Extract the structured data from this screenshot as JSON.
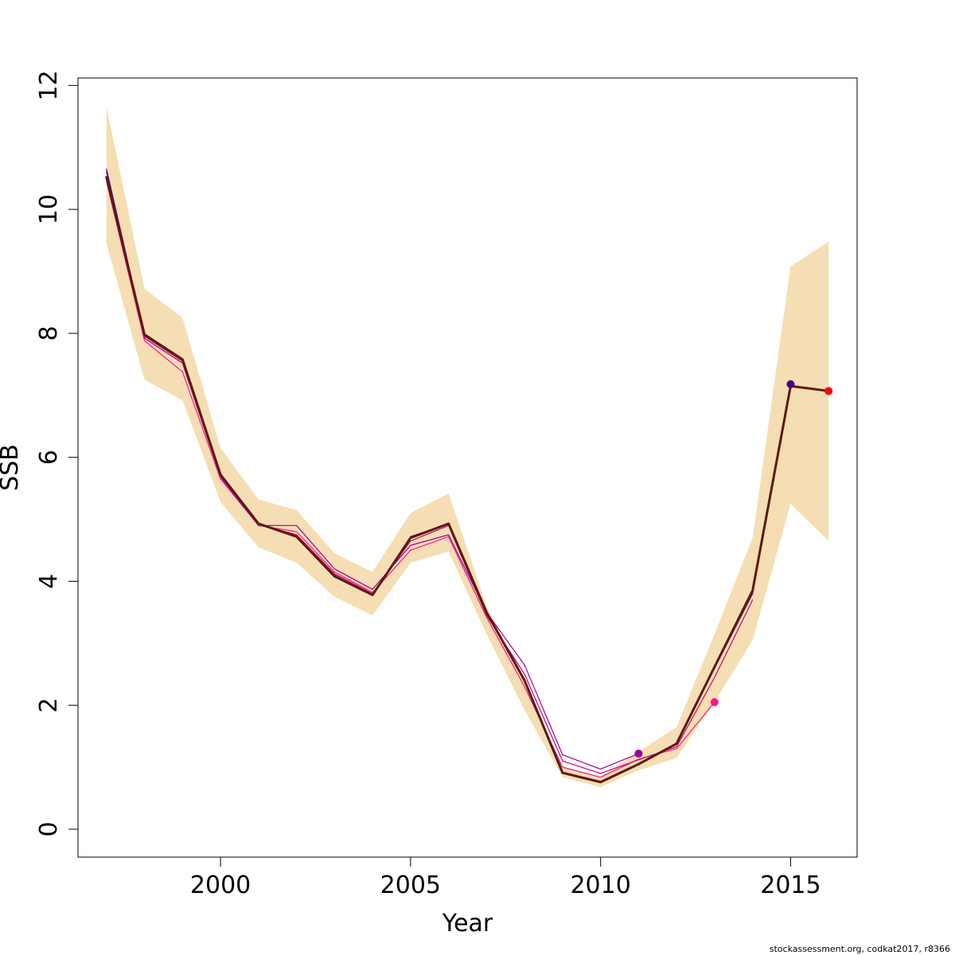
{
  "chart_data": {
    "type": "line",
    "xlabel": "Year",
    "ylabel": "SSB",
    "xlim": [
      1996.25,
      2016.75
    ],
    "ylim": [
      -0.45,
      12.12
    ],
    "x_ticks": [
      2000,
      2005,
      2010,
      2015
    ],
    "y_ticks": [
      0,
      2,
      4,
      6,
      8,
      10,
      12
    ],
    "grid": false,
    "legend": "none",
    "band": {
      "color": "#f5deb3",
      "x": [
        1997,
        1998,
        1999,
        2000,
        2001,
        2002,
        2003,
        2004,
        2005,
        2006,
        2007,
        2008,
        2009,
        2010,
        2011,
        2012,
        2013,
        2014,
        2015,
        2016
      ],
      "upper": [
        11.65,
        8.72,
        8.25,
        6.15,
        5.32,
        5.15,
        4.45,
        4.15,
        5.1,
        5.42,
        3.6,
        2.35,
        1.02,
        0.85,
        1.25,
        1.65,
        3.15,
        4.7,
        9.08,
        9.48
      ],
      "lower": [
        9.45,
        7.25,
        6.92,
        5.28,
        4.55,
        4.3,
        3.75,
        3.45,
        4.3,
        4.48,
        3.15,
        1.92,
        0.84,
        0.68,
        0.95,
        1.15,
        2.05,
        3.05,
        5.25,
        4.65
      ]
    },
    "series": [
      {
        "color": "#ff1493",
        "width": 1.2,
        "x": [
          1997,
          1998,
          1999,
          2000,
          2001,
          2002,
          2003,
          2004,
          2005,
          2006,
          2007,
          2008,
          2009,
          2010,
          2011,
          2012,
          2013
        ],
        "values": [
          10.45,
          7.88,
          7.38,
          5.65,
          4.9,
          4.8,
          4.15,
          3.82,
          4.5,
          4.72,
          3.42,
          2.3,
          1.0,
          0.84,
          1.13,
          1.3,
          2.05
        ],
        "end_point": true
      },
      {
        "color": "#9b009b",
        "width": 1.2,
        "x": [
          1997,
          1998,
          1999,
          2000,
          2001,
          2002,
          2003,
          2004,
          2005,
          2006,
          2007,
          2008,
          2009,
          2010,
          2011
        ],
        "values": [
          10.6,
          7.92,
          7.52,
          5.68,
          4.9,
          4.9,
          4.2,
          3.87,
          4.58,
          4.75,
          3.5,
          2.65,
          1.2,
          0.97,
          1.22
        ],
        "end_point": true
      },
      {
        "color": "#cc0077",
        "width": 1.2,
        "x": [
          1997,
          1998,
          1999,
          2000,
          2001,
          2002,
          2003,
          2004,
          2005,
          2006,
          2007,
          2008,
          2009,
          2010,
          2011,
          2012,
          2013,
          2014
        ],
        "values": [
          10.5,
          7.95,
          7.55,
          5.7,
          4.92,
          4.75,
          4.12,
          3.8,
          4.65,
          4.9,
          3.45,
          2.5,
          1.1,
          0.9,
          1.12,
          1.33,
          2.45,
          3.7
        ],
        "end_point": false
      },
      {
        "color": "#4b0082",
        "width": 1.2,
        "x": [
          1997,
          1998,
          1999,
          2000,
          2001,
          2002,
          2003,
          2004,
          2005,
          2006,
          2007,
          2008,
          2009,
          2010,
          2011,
          2012,
          2013,
          2014,
          2015
        ],
        "values": [
          10.65,
          7.98,
          7.58,
          5.72,
          4.93,
          4.72,
          4.1,
          3.78,
          4.72,
          4.93,
          3.5,
          2.4,
          0.92,
          0.77,
          1.05,
          1.37,
          2.6,
          3.8,
          7.18
        ],
        "end_point": true
      },
      {
        "color": "#ff0000",
        "width": 1.6,
        "x": [
          1997,
          1998,
          1999,
          2000,
          2001,
          2002,
          2003,
          2004,
          2005,
          2006,
          2007,
          2008,
          2009,
          2010,
          2011,
          2012,
          2013,
          2014,
          2015,
          2016
        ],
        "values": [
          10.52,
          7.98,
          7.58,
          5.72,
          4.93,
          4.72,
          4.08,
          3.78,
          4.7,
          4.93,
          3.5,
          2.4,
          0.91,
          0.76,
          1.05,
          1.38,
          2.62,
          3.85,
          7.15,
          7.07
        ],
        "end_point": true
      },
      {
        "color": "#5a1a10",
        "width": 3,
        "x": [
          1997,
          1998,
          1999,
          2000,
          2001,
          2002,
          2003,
          2004,
          2005,
          2006,
          2007,
          2008,
          2009,
          2010,
          2011,
          2012,
          2013,
          2014,
          2015,
          2016
        ],
        "values": [
          10.52,
          7.98,
          7.58,
          5.72,
          4.93,
          4.72,
          4.08,
          3.78,
          4.7,
          4.93,
          3.5,
          2.4,
          0.91,
          0.76,
          1.05,
          1.38,
          2.62,
          3.85,
          7.15,
          7.07
        ],
        "end_point": false
      }
    ],
    "footnote": "stockassessment.org, codkat2017, r8366"
  }
}
